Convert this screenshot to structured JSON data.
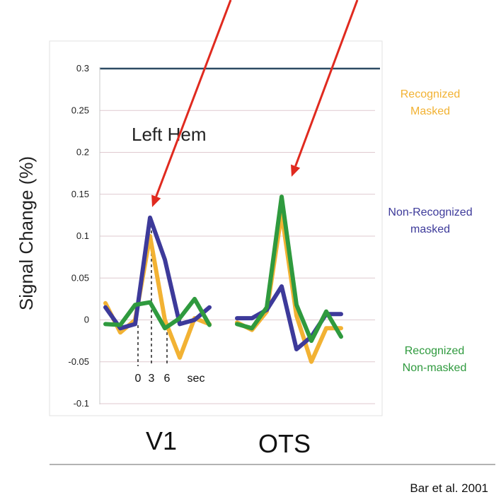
{
  "chart_data": {
    "type": "line",
    "ylabel": "Signal Change  (%)",
    "ylim": [
      -0.1,
      0.3
    ],
    "yticks": [
      "0.3",
      "0.25",
      "0.2",
      "0.15",
      "0.1",
      "0.05",
      "0",
      "-0.05",
      "-0.1"
    ],
    "ytick_values": [
      0.3,
      0.25,
      0.2,
      0.15,
      0.1,
      0.05,
      0,
      -0.05,
      -0.1
    ],
    "grid": true,
    "annotation": "Left Hem",
    "time_ticks": [
      "0",
      "3",
      "6",
      "sec"
    ],
    "regions": [
      {
        "label": "V1",
        "series": [
          {
            "name": "Recognized Masked",
            "color": "#f2b233",
            "values": [
              0.02,
              -0.015,
              0.0,
              0.1,
              0.0,
              -0.045,
              0.002,
              -0.005
            ]
          },
          {
            "name": "Non-Recognized masked",
            "color": "#3d3a9a",
            "values": [
              0.015,
              -0.01,
              -0.005,
              0.122,
              0.072,
              -0.005,
              0.0,
              0.015
            ]
          },
          {
            "name": "Recognized Non-masked",
            "color": "#2f9a3e",
            "values": [
              -0.005,
              -0.006,
              0.018,
              0.021,
              -0.01,
              0.002,
              0.025,
              -0.006
            ]
          }
        ]
      },
      {
        "label": "OTS",
        "series": [
          {
            "name": "Recognized Masked",
            "color": "#f2b233",
            "values": [
              -0.003,
              -0.012,
              0.01,
              0.127,
              0.005,
              -0.05,
              -0.01,
              -0.01
            ]
          },
          {
            "name": "Non-Recognized masked",
            "color": "#3d3a9a",
            "values": [
              0.002,
              0.002,
              0.012,
              0.04,
              -0.035,
              -0.02,
              0.007,
              0.007
            ]
          },
          {
            "name": "Recognized Non-masked",
            "color": "#2f9a3e",
            "values": [
              -0.005,
              -0.01,
              0.015,
              0.147,
              0.018,
              -0.025,
              0.01,
              -0.02
            ]
          }
        ]
      }
    ],
    "legend": [
      {
        "lines": [
          "Recognized",
          "Masked"
        ],
        "color": "#f2b233"
      },
      {
        "lines": [
          "Non-Recognized",
          "masked"
        ],
        "color": "#3d3a9a"
      },
      {
        "lines": [
          "Recognized",
          "Non-masked"
        ],
        "color": "#2f9a3e"
      }
    ],
    "arrow_color": "#e02a1f",
    "credit": "Bar et al. 2001"
  }
}
